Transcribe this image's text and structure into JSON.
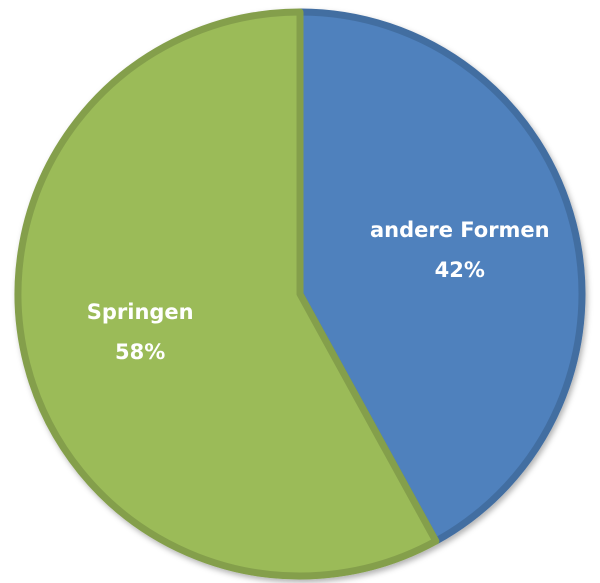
{
  "chart_data": {
    "type": "pie",
    "categories": [
      "andere Formen",
      "Springen"
    ],
    "values": [
      42,
      58
    ],
    "value_labels": [
      "42%",
      "58%"
    ],
    "colors": [
      "#4f81bd",
      "#9bbb59"
    ]
  }
}
